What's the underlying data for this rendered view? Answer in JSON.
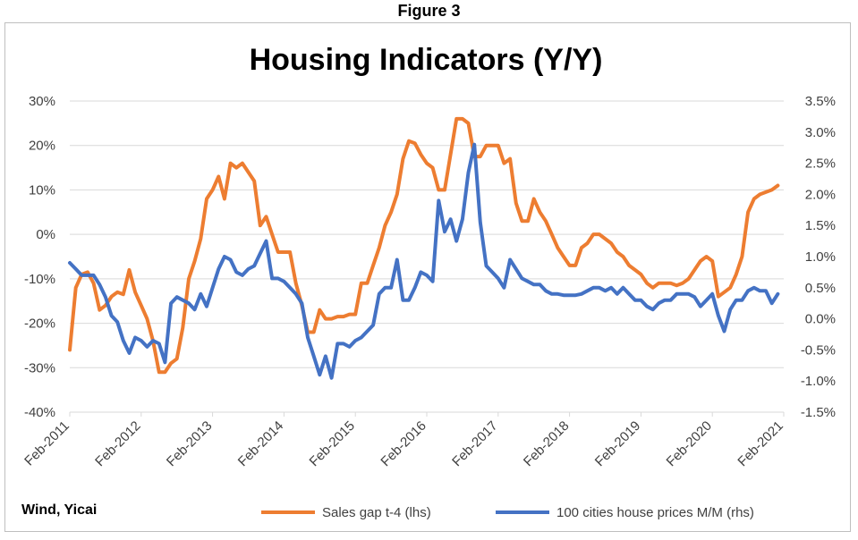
{
  "figure_label": "Figure 3",
  "source": "Wind, Yicai",
  "colors": {
    "series_left": "#ED7D31",
    "series_right": "#4472C4",
    "gridline": "#D9D9D9",
    "axis_text": "#404040"
  },
  "chart_data": {
    "type": "line",
    "title": "Housing Indicators (Y/Y)",
    "xlabel": "",
    "ylabel": "",
    "ylim_left": [
      -40,
      30
    ],
    "ylim_right": [
      -1.5,
      3.5
    ],
    "yticks_left": [
      "30%",
      "20%",
      "10%",
      "0%",
      "-10%",
      "-20%",
      "-30%",
      "-40%"
    ],
    "yticks_right": [
      "3.5%",
      "3.0%",
      "2.5%",
      "2.0%",
      "1.5%",
      "1.0%",
      "0.5%",
      "0.0%",
      "-0.5%",
      "-1.0%",
      "-1.5%"
    ],
    "xticks": [
      "Feb-2011",
      "Feb-2012",
      "Feb-2013",
      "Feb-2014",
      "Feb-2015",
      "Feb-2016",
      "Feb-2017",
      "Feb-2018",
      "Feb-2019",
      "Feb-2020",
      "Feb-2021"
    ],
    "grid": "horizontal",
    "legend_position": "bottom",
    "series": [
      {
        "name": "Sales gap t-4 (lhs)",
        "axis": "left",
        "x_start": "Feb-2011",
        "x_step": "month",
        "values": [
          -26,
          -12,
          -9,
          -8.5,
          -11,
          -17,
          -16,
          -14,
          -13,
          -13.5,
          -8,
          -13,
          -16,
          -19,
          -24,
          -31,
          -31,
          -29,
          -28,
          -21,
          -10,
          -6,
          -1,
          8,
          10,
          13,
          8,
          16,
          15,
          16,
          14,
          12,
          2,
          4,
          0,
          -4,
          -4,
          -4,
          -11,
          -16,
          -22,
          -22,
          -17,
          -19,
          -19,
          -18.5,
          -18.5,
          -18,
          -18,
          -11,
          -11,
          -7,
          -3,
          2,
          5,
          9,
          17,
          21,
          20.5,
          18,
          16,
          15,
          10,
          10,
          18,
          26,
          26,
          25,
          17.5,
          17.5,
          20,
          20,
          20,
          16,
          17,
          7,
          3,
          3,
          8,
          5,
          3,
          0,
          -3,
          -5,
          -7,
          -7,
          -3,
          -2,
          0,
          0,
          -1,
          -2,
          -4,
          -5,
          -7,
          -8,
          -9,
          -11,
          -12,
          -11,
          -11,
          -11,
          -11.5,
          -11,
          -10,
          -8,
          -6,
          -5,
          -6,
          -14,
          -13,
          -12,
          -9,
          -5,
          5,
          8,
          9,
          9.5,
          10,
          11
        ]
      },
      {
        "name": "100 cities house prices M/M (rhs)",
        "axis": "right",
        "x_start": "Feb-2011",
        "x_step": "month",
        "values": [
          0.9,
          0.8,
          0.7,
          0.7,
          0.7,
          0.55,
          0.35,
          0.05,
          -0.05,
          -0.35,
          -0.55,
          -0.3,
          -0.35,
          -0.45,
          -0.35,
          -0.4,
          -0.7,
          0.25,
          0.35,
          0.3,
          0.25,
          0.15,
          0.4,
          0.2,
          0.5,
          0.8,
          1.0,
          0.95,
          0.75,
          0.7,
          0.8,
          0.85,
          1.05,
          1.25,
          0.65,
          0.65,
          0.6,
          0.5,
          0.4,
          0.25,
          -0.3,
          -0.6,
          -0.9,
          -0.6,
          -0.95,
          -0.4,
          -0.4,
          -0.45,
          -0.35,
          -0.3,
          -0.2,
          -0.1,
          0.4,
          0.5,
          0.5,
          0.95,
          0.3,
          0.3,
          0.5,
          0.75,
          0.7,
          0.6,
          1.9,
          1.4,
          1.6,
          1.25,
          1.6,
          2.35,
          2.8,
          1.55,
          0.85,
          0.75,
          0.65,
          0.5,
          0.95,
          0.8,
          0.65,
          0.6,
          0.55,
          0.55,
          0.45,
          0.4,
          0.4,
          0.38,
          0.38,
          0.38,
          0.4,
          0.45,
          0.5,
          0.5,
          0.45,
          0.5,
          0.4,
          0.5,
          0.4,
          0.3,
          0.3,
          0.2,
          0.15,
          0.25,
          0.3,
          0.3,
          0.4,
          0.4,
          0.4,
          0.35,
          0.2,
          0.3,
          0.4,
          0.05,
          -0.2,
          0.15,
          0.3,
          0.3,
          0.45,
          0.5,
          0.45,
          0.45,
          0.25,
          0.4
        ]
      }
    ]
  }
}
